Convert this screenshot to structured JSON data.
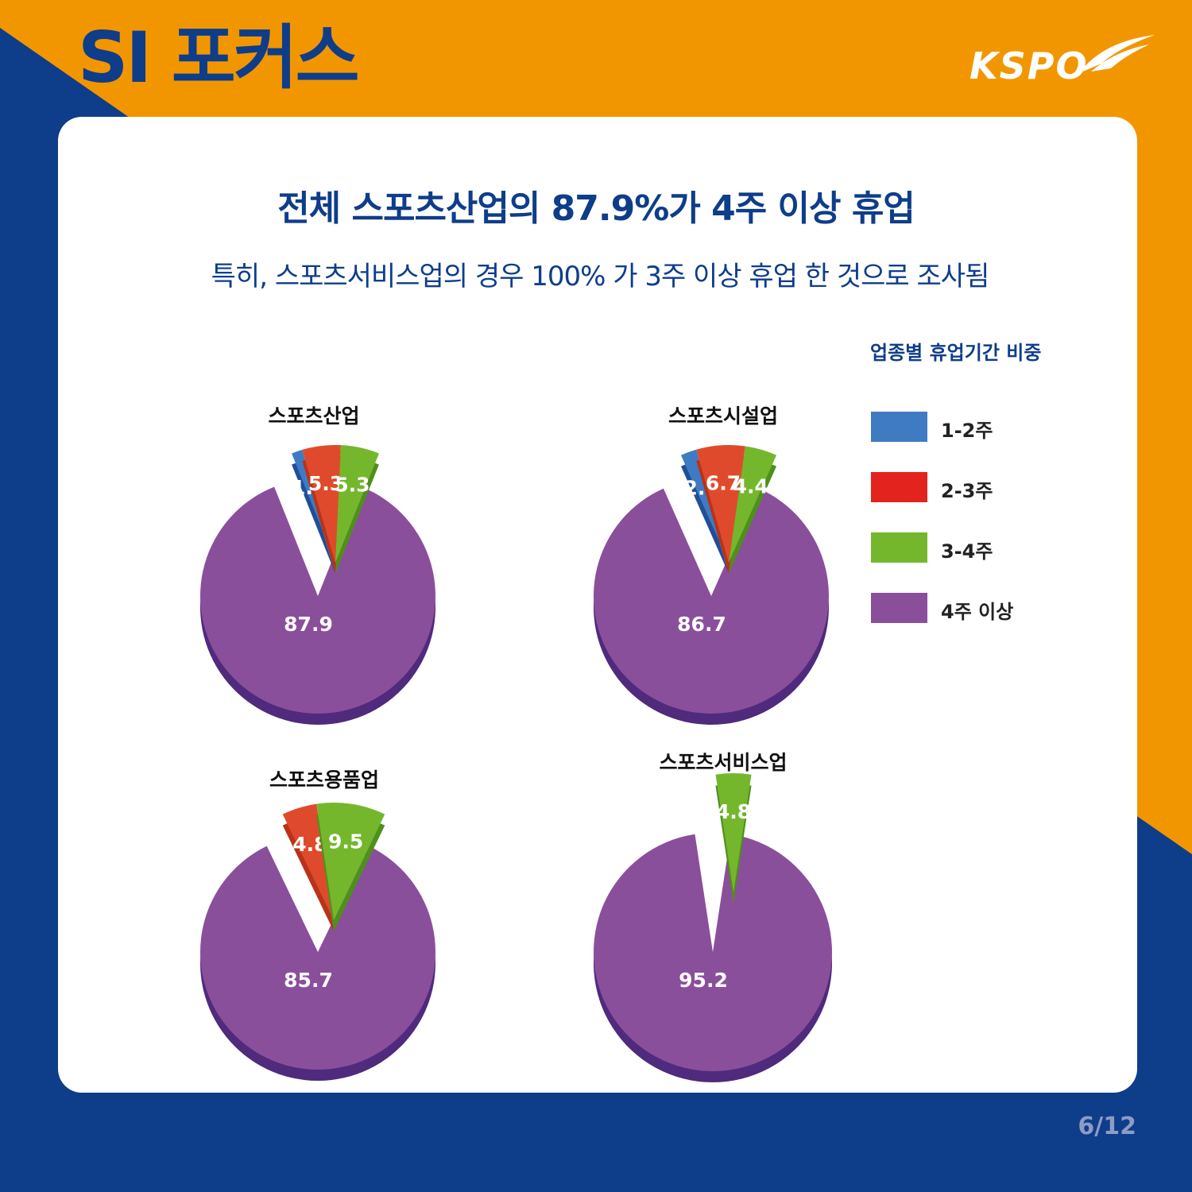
{
  "header": {
    "brand_title": "SI 포커스",
    "logo_text": "KSPO"
  },
  "headline": "전체 스포츠산업의 87.9%가 4주 이상 휴업",
  "subhead": "특히, 스포츠서비스업의 경우 100% 가 3주 이상 휴업 한 것으로 조사됨",
  "legend": {
    "title": "업종별 휴업기간 비중",
    "items": [
      {
        "label": "1-2주",
        "color": "#3f7bc3"
      },
      {
        "label": "2-3주",
        "color": "#e3231d"
      },
      {
        "label": "3-4주",
        "color": "#74b72c"
      },
      {
        "label": "4주 이상",
        "color": "#8a4f9b"
      }
    ]
  },
  "colors": {
    "background_orange": "#f29600",
    "background_blue": "#0e3d8a",
    "title_blue": "#0e3d8a"
  },
  "chart_data": [
    {
      "type": "pie",
      "title": "스포츠산업",
      "labels": [
        "1-2주",
        "2-3주",
        "3-4주",
        "4주 이상"
      ],
      "values": [
        1.5,
        5.3,
        5.3,
        87.9
      ]
    },
    {
      "type": "pie",
      "title": "스포츠시설업",
      "labels": [
        "1-2주",
        "2-3주",
        "3-4주",
        "4주 이상"
      ],
      "values": [
        2.2,
        6.7,
        4.4,
        86.7
      ]
    },
    {
      "type": "pie",
      "title": "스포츠용품업",
      "labels": [
        "2-3주",
        "3-4주",
        "4주 이상"
      ],
      "values": [
        4.8,
        9.5,
        85.7
      ]
    },
    {
      "type": "pie",
      "title": "스포츠서비스업",
      "labels": [
        "3-4주",
        "4주 이상"
      ],
      "values": [
        4.8,
        95.2
      ]
    }
  ],
  "page_indicator": "6/12"
}
